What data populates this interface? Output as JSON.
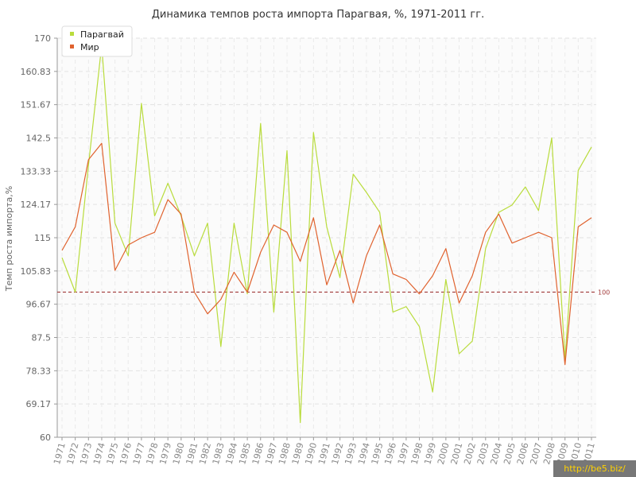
{
  "chart_data": {
    "type": "line",
    "title": "Динамика темпов роста импорта Парагвая, %, 1971-2011 гг.",
    "ylabel": "Темп роста импорта,%",
    "xlabel": "",
    "ylim": [
      60,
      170
    ],
    "y_ticks": [
      "60",
      "69.17",
      "78.33",
      "87.5",
      "96.67",
      "105.83",
      "115",
      "124.17",
      "133.33",
      "142.5",
      "151.67",
      "160.83",
      "170"
    ],
    "x": [
      "1971",
      "1972",
      "1973",
      "1974",
      "1975",
      "1976",
      "1977",
      "1978",
      "1979",
      "1980",
      "1981",
      "1982",
      "1983",
      "1984",
      "1985",
      "1986",
      "1987",
      "1988",
      "1989",
      "1990",
      "1991",
      "1992",
      "1993",
      "1994",
      "1995",
      "1996",
      "1997",
      "1998",
      "1999",
      "2000",
      "2001",
      "2002",
      "2003",
      "2004",
      "2005",
      "2006",
      "2007",
      "2008",
      "2009",
      "2010",
      "2011"
    ],
    "grid": true,
    "legend_position": "top-left",
    "reference_line": {
      "value": 100,
      "label": "100",
      "color": "#a23b3b"
    },
    "series": [
      {
        "name": "Парагвай",
        "color": "#b9dc3c",
        "values": [
          109.5,
          100,
          135,
          168,
          119,
          110,
          152,
          121,
          130,
          121,
          110,
          119,
          85,
          119,
          99.5,
          146.5,
          94.5,
          139,
          64,
          144,
          118,
          104,
          132.5,
          127.5,
          122,
          94.5,
          96,
          90.5,
          72.5,
          103.5,
          83,
          86.5,
          112,
          122,
          124,
          129,
          122.5,
          142.5,
          81.5,
          133.5,
          140
        ]
      },
      {
        "name": "Мир",
        "color": "#e0622e",
        "values": [
          111.5,
          118,
          136.5,
          141,
          106,
          113,
          115,
          116.5,
          125.5,
          121.5,
          100,
          94,
          98,
          105.5,
          100,
          111,
          118.5,
          116.5,
          108.5,
          120.5,
          102,
          111.5,
          97,
          110,
          118.5,
          105,
          103.5,
          99.5,
          104.5,
          112,
          97,
          104.5,
          116.5,
          121.5,
          113.5,
          115,
          116.5,
          115,
          80,
          118,
          120.5
        ]
      }
    ]
  },
  "watermark": "http://be5.biz/"
}
